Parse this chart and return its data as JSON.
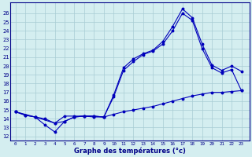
{
  "xlabel": "Graphe des températures (°c)",
  "background_color": "#d4eef0",
  "grid_color": "#a8ccd4",
  "line_color": "#0000bb",
  "x_ticks": [
    0,
    1,
    2,
    3,
    4,
    5,
    6,
    7,
    8,
    9,
    10,
    11,
    12,
    13,
    14,
    15,
    16,
    17,
    18,
    19,
    20,
    21,
    22,
    23
  ],
  "y_ticks": [
    12,
    13,
    14,
    15,
    16,
    17,
    18,
    19,
    20,
    21,
    22,
    23,
    24,
    25,
    26
  ],
  "ylim": [
    11.5,
    27.2
  ],
  "xlim": [
    -0.5,
    23.8
  ],
  "line1_x": [
    0,
    1,
    2,
    3,
    4,
    5,
    6,
    7,
    8,
    9,
    10,
    11,
    12,
    13,
    14,
    15,
    16,
    17,
    18,
    19,
    20,
    21,
    22,
    23
  ],
  "line1_y": [
    14.8,
    14.4,
    14.2,
    14.0,
    13.5,
    14.3,
    14.3,
    14.3,
    14.2,
    14.2,
    14.5,
    14.8,
    15.0,
    15.2,
    15.4,
    15.7,
    16.0,
    16.3,
    16.6,
    16.8,
    17.0,
    17.0,
    17.1,
    17.2
  ],
  "line2_x": [
    0,
    1,
    2,
    3,
    4,
    5,
    6,
    7,
    8,
    9,
    10,
    11,
    12,
    13,
    14,
    15,
    16,
    17,
    18,
    19,
    20,
    21,
    22,
    23
  ],
  "line2_y": [
    14.8,
    14.4,
    14.2,
    13.3,
    12.5,
    13.7,
    14.2,
    14.3,
    14.3,
    14.2,
    16.7,
    19.8,
    20.8,
    21.4,
    21.8,
    22.8,
    24.5,
    26.5,
    25.5,
    22.5,
    20.1,
    19.5,
    20.0,
    19.4
  ],
  "line3_x": [
    0,
    2,
    4,
    5,
    6,
    7,
    8,
    9,
    10,
    11,
    12,
    13,
    14,
    15,
    16,
    17,
    18,
    19,
    20,
    21,
    22,
    23
  ],
  "line3_y": [
    14.8,
    14.2,
    13.5,
    13.7,
    14.2,
    14.3,
    14.3,
    14.2,
    16.5,
    19.5,
    20.5,
    21.3,
    21.7,
    22.5,
    24.0,
    26.0,
    25.2,
    22.0,
    19.8,
    19.2,
    19.6,
    17.2
  ]
}
